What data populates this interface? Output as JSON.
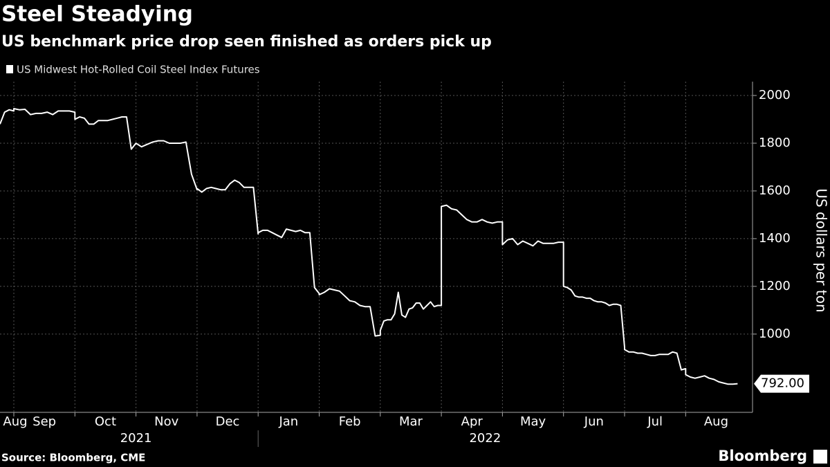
{
  "chart_data": {
    "type": "line",
    "title": "Steel Steadying",
    "subtitle": "US benchmark price drop seen finished as orders pick up",
    "ylabel": "US dollars per ton",
    "source": "Source: Bloomberg, CME",
    "brand": "Bloomberg",
    "month_labels": [
      "Aug",
      "Sep",
      "Oct",
      "Nov",
      "Dec",
      "Jan",
      "Feb",
      "Mar",
      "Apr",
      "May",
      "Jun",
      "Jul",
      "Aug"
    ],
    "years": [
      "2021",
      "2022"
    ],
    "x": [
      "2021-08",
      "2021-08",
      "2021-08",
      "2021-08",
      "2021-09",
      "2021-09",
      "2021-09",
      "2021-09",
      "2021-09",
      "2021-09",
      "2021-09",
      "2021-09",
      "2021-09",
      "2021-09",
      "2021-09",
      "2021-09",
      "2021-10",
      "2021-10",
      "2021-10",
      "2021-10",
      "2021-10",
      "2021-10",
      "2021-10",
      "2021-10",
      "2021-10",
      "2021-10",
      "2021-10",
      "2021-10",
      "2021-10",
      "2021-10",
      "2021-11",
      "2021-11",
      "2021-11",
      "2021-11",
      "2021-11",
      "2021-11",
      "2021-11",
      "2021-11",
      "2021-11",
      "2021-11",
      "2021-11",
      "2021-11",
      "2021-12",
      "2021-12",
      "2021-12",
      "2021-12",
      "2021-12",
      "2021-12",
      "2021-12",
      "2021-12",
      "2021-12",
      "2021-12",
      "2021-12",
      "2021-12",
      "2021-12",
      "2021-12",
      "2022-01",
      "2022-01",
      "2022-01",
      "2022-01",
      "2022-01",
      "2022-01",
      "2022-01",
      "2022-01",
      "2022-01",
      "2022-01",
      "2022-01",
      "2022-01",
      "2022-01",
      "2022-01",
      "2022-02",
      "2022-02",
      "2022-02",
      "2022-02",
      "2022-02",
      "2022-02",
      "2022-02",
      "2022-02",
      "2022-02",
      "2022-02",
      "2022-02",
      "2022-02",
      "2022-02",
      "2022-03",
      "2022-03",
      "2022-03",
      "2022-03",
      "2022-03",
      "2022-03",
      "2022-03",
      "2022-03",
      "2022-03",
      "2022-03",
      "2022-03",
      "2022-03",
      "2022-03",
      "2022-03",
      "2022-03",
      "2022-03",
      "2022-03",
      "2022-03",
      "2022-04",
      "2022-04",
      "2022-04",
      "2022-04",
      "2022-04",
      "2022-04",
      "2022-04",
      "2022-04",
      "2022-04",
      "2022-04",
      "2022-04",
      "2022-04",
      "2022-04",
      "2022-05",
      "2022-05",
      "2022-05",
      "2022-05",
      "2022-05",
      "2022-05",
      "2022-05",
      "2022-05",
      "2022-05",
      "2022-05",
      "2022-05",
      "2022-05",
      "2022-05",
      "2022-06",
      "2022-06",
      "2022-06",
      "2022-06",
      "2022-06",
      "2022-06",
      "2022-06",
      "2022-06",
      "2022-06",
      "2022-06",
      "2022-06",
      "2022-06",
      "2022-06",
      "2022-06",
      "2022-06",
      "2022-06",
      "2022-06",
      "2022-07",
      "2022-07",
      "2022-07",
      "2022-07",
      "2022-07",
      "2022-07",
      "2022-07",
      "2022-07",
      "2022-07",
      "2022-07",
      "2022-07",
      "2022-07",
      "2022-07",
      "2022-07",
      "2022-07",
      "2022-08",
      "2022-08",
      "2022-08",
      "2022-08",
      "2022-08",
      "2022-08",
      "2022-08",
      "2022-08",
      "2022-08",
      "2022-08",
      "2022-08",
      "2022-08"
    ],
    "series": [
      {
        "name": "US Midwest Hot-Rolled Coil Steel Index Futures",
        "color": "#ffffff",
        "values": [
          1880,
          1930,
          1940,
          1935,
          1945,
          1940,
          1942,
          1920,
          1925,
          1925,
          1930,
          1920,
          1935,
          1935,
          1935,
          1930,
          1900,
          1910,
          1905,
          1880,
          1880,
          1895,
          1895,
          1895,
          1900,
          1905,
          1910,
          1910,
          1775,
          1800,
          1800,
          1785,
          1795,
          1805,
          1810,
          1810,
          1800,
          1800,
          1800,
          1805,
          1670,
          1605,
          1610,
          1595,
          1610,
          1615,
          1610,
          1605,
          1605,
          1630,
          1645,
          1635,
          1615,
          1615,
          1615,
          1420,
          1425,
          1435,
          1435,
          1425,
          1415,
          1405,
          1440,
          1435,
          1430,
          1435,
          1425,
          1425,
          1195,
          1170,
          1165,
          1175,
          1190,
          1185,
          1180,
          1160,
          1140,
          1135,
          1120,
          1115,
          1115,
          992,
          995,
          1015,
          1055,
          1060,
          1060,
          1085,
          1175,
          1080,
          1070,
          1105,
          1110,
          1130,
          1130,
          1105,
          1120,
          1135,
          1115,
          1120,
          1120,
          1535,
          1540,
          1525,
          1520,
          1500,
          1480,
          1470,
          1470,
          1480,
          1470,
          1465,
          1470,
          1470,
          1375,
          1395,
          1400,
          1375,
          1390,
          1380,
          1370,
          1390,
          1380,
          1380,
          1380,
          1385,
          1385,
          1200,
          1195,
          1185,
          1160,
          1155,
          1155,
          1150,
          1150,
          1140,
          1135,
          1135,
          1130,
          1120,
          1125,
          1125,
          1120,
          945,
          935,
          925,
          925,
          920,
          920,
          915,
          910,
          910,
          915,
          915,
          915,
          925,
          920,
          850,
          855,
          830,
          820,
          815,
          820,
          825,
          815,
          810,
          800,
          795,
          790,
          790,
          792
        ],
        "last_label": "792.00"
      }
    ],
    "ylim": [
      672,
      2058
    ],
    "yticks": [
      1000,
      1200,
      1400,
      1600,
      1800,
      2000
    ],
    "grid": true
  }
}
